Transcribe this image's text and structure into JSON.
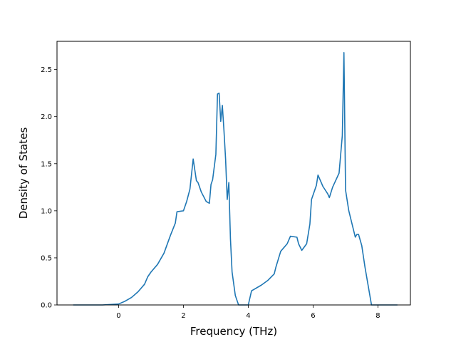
{
  "chart_data": {
    "type": "line",
    "title": "",
    "xlabel": "Frequency (THz)",
    "ylabel": "Density of States",
    "xlim": [
      -1.9,
      9.0
    ],
    "ylim": [
      0.0,
      2.8
    ],
    "xticks": [
      0,
      2,
      4,
      6,
      8
    ],
    "xtick_labels": [
      "0",
      "2",
      "4",
      "6",
      "8"
    ],
    "yticks": [
      0.0,
      0.5,
      1.0,
      1.5,
      2.0,
      2.5
    ],
    "ytick_labels": [
      "0.0",
      "0.5",
      "1.0",
      "1.5",
      "2.0",
      "2.5"
    ],
    "grid": false,
    "legend": "none",
    "series": [
      {
        "color": "#1f77b4",
        "x": [
          -1.4,
          -0.5,
          0.0,
          0.2,
          0.4,
          0.6,
          0.8,
          0.9,
          1.0,
          1.2,
          1.4,
          1.6,
          1.75,
          1.8,
          2.0,
          2.1,
          2.2,
          2.3,
          2.4,
          2.45,
          2.55,
          2.7,
          2.8,
          2.85,
          2.9,
          3.0,
          3.05,
          3.1,
          3.15,
          3.2,
          3.25,
          3.3,
          3.35,
          3.4,
          3.45,
          3.5,
          3.6,
          3.7,
          3.8,
          4.0,
          4.1,
          4.4,
          4.6,
          4.8,
          4.85,
          5.0,
          5.2,
          5.3,
          5.5,
          5.55,
          5.65,
          5.8,
          5.9,
          5.95,
          6.1,
          6.15,
          6.3,
          6.45,
          6.5,
          6.6,
          6.8,
          6.85,
          6.9,
          6.95,
          7.0,
          7.1,
          7.2,
          7.3,
          7.35,
          7.4,
          7.5,
          7.6,
          7.7,
          7.8,
          8.6
        ],
        "y": [
          0.0,
          0.0,
          0.01,
          0.04,
          0.08,
          0.14,
          0.22,
          0.3,
          0.35,
          0.43,
          0.55,
          0.74,
          0.87,
          0.99,
          1.0,
          1.1,
          1.23,
          1.55,
          1.32,
          1.3,
          1.2,
          1.1,
          1.08,
          1.28,
          1.33,
          1.6,
          2.24,
          2.25,
          1.95,
          2.12,
          1.85,
          1.55,
          1.12,
          1.3,
          0.7,
          0.35,
          0.1,
          0.0,
          0.0,
          0.0,
          0.15,
          0.21,
          0.26,
          0.33,
          0.4,
          0.57,
          0.65,
          0.73,
          0.72,
          0.65,
          0.58,
          0.65,
          0.86,
          1.12,
          1.27,
          1.38,
          1.26,
          1.18,
          1.14,
          1.25,
          1.4,
          1.6,
          1.8,
          2.68,
          1.22,
          1.0,
          0.86,
          0.72,
          0.75,
          0.75,
          0.63,
          0.4,
          0.2,
          0.0,
          0.0
        ]
      }
    ]
  }
}
